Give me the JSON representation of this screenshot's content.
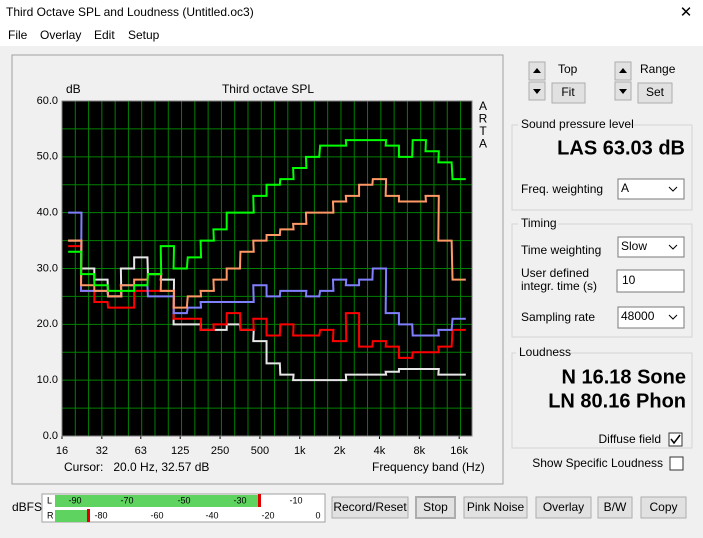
{
  "window": {
    "title": "Third Octave SPL and Loudness (Untitled.oc3)",
    "close": "✕"
  },
  "menu": [
    "File",
    "Overlay",
    "Edit",
    "Setup"
  ],
  "chart_data": {
    "type": "line",
    "title": "Third octave SPL",
    "y_label": "dB",
    "x_label": "Frequency band (Hz)",
    "side_label": [
      "A",
      "R",
      "T",
      "A"
    ],
    "cursor": "Cursor:   20.0 Hz, 32.57 dB",
    "log_x": true,
    "grid": true,
    "background": "#000000",
    "grid_color": "#008000",
    "x": [
      20,
      25,
      31.5,
      40,
      50,
      63,
      80,
      100,
      125,
      160,
      200,
      250,
      315,
      400,
      500,
      630,
      800,
      1000,
      1250,
      1600,
      2000,
      2500,
      3150,
      4000,
      5000,
      6300,
      8000,
      10000,
      12500,
      16000
    ],
    "xlim": [
      16,
      20000
    ],
    "xticks": [
      16,
      32,
      63,
      125,
      250,
      500,
      {
        "value": 1000,
        "label": "1k"
      },
      {
        "value": 2000,
        "label": "2k"
      },
      {
        "value": 4000,
        "label": "4k"
      },
      {
        "value": 8000,
        "label": "8k"
      },
      {
        "value": 16000,
        "label": "16k"
      }
    ],
    "ylim": [
      0,
      60
    ],
    "yticks": [
      {
        "value": 0,
        "label": "0.0"
      },
      {
        "value": 10,
        "label": "10.0"
      },
      {
        "value": 20,
        "label": "20.0"
      },
      {
        "value": 30,
        "label": "30.0"
      },
      {
        "value": 40,
        "label": "40.0"
      },
      {
        "value": 50,
        "label": "50.0"
      },
      {
        "value": 60,
        "label": "60.0"
      }
    ],
    "yminorticks": [
      5,
      15,
      25,
      35,
      45,
      55
    ],
    "series": [
      {
        "color": "#e6e6e6",
        "values": [
          35,
          30,
          28,
          25,
          30,
          32,
          29,
          28,
          20,
          20,
          19,
          19,
          20,
          19,
          17,
          13,
          11,
          10,
          10,
          10,
          10,
          11,
          11,
          11,
          11.5,
          12,
          12,
          12,
          11,
          11
        ]
      },
      {
        "color": "#ff0000",
        "values": [
          34,
          26,
          24,
          23,
          23,
          26,
          26,
          26,
          21,
          21,
          19,
          20,
          22,
          19,
          21,
          18,
          20,
          18,
          18,
          19,
          17,
          22,
          16,
          17,
          16,
          14,
          15,
          15,
          16,
          19
        ]
      },
      {
        "color": "#8080ff",
        "values": [
          40,
          26,
          26,
          25,
          27,
          27,
          25,
          25,
          22,
          23,
          24,
          24,
          24,
          24,
          27,
          25,
          26,
          26,
          25,
          26,
          28,
          27,
          28,
          30,
          22,
          20,
          18,
          18,
          19,
          21
        ]
      },
      {
        "color": "#ff9966",
        "values": [
          35,
          27,
          26,
          25,
          27,
          28,
          29,
          26,
          23,
          25,
          26,
          28,
          30,
          33,
          35,
          36,
          37,
          38,
          40,
          40,
          42,
          43,
          45,
          46,
          43,
          42,
          42,
          43,
          35,
          28
        ]
      },
      {
        "color": "#00ff00",
        "values": [
          33,
          29,
          27,
          26,
          26,
          27,
          29,
          34,
          30,
          32,
          35,
          37,
          40,
          40,
          43,
          45,
          46,
          48,
          50,
          52,
          52,
          53,
          53,
          53,
          52,
          50,
          53,
          51,
          49,
          46
        ]
      }
    ]
  },
  "controls": {
    "top": "Top",
    "fit": "Fit",
    "range": "Range",
    "set": "Set",
    "spl_group": "Sound pressure level",
    "las": "LAS 63.03 dB",
    "freq_weighting": "Freq. weighting",
    "freq_weighting_value": "A",
    "timing_group": "Timing",
    "time_weighting": "Time weighting",
    "time_weighting_value": "Slow",
    "integr_time": [
      "User defined",
      "integr. time (s)"
    ],
    "integr_time_value": "10",
    "sampling_rate": "Sampling rate",
    "sampling_rate_value": "48000",
    "loudness_group": "Loudness",
    "n": "N 16.18 Sone",
    "ln": "LN 80.16 Phon",
    "diffuse_field": "Diffuse field",
    "show_specific": "Show Specific Loudness"
  },
  "meter": {
    "label": "dBFS",
    "l": "L",
    "r": "R",
    "l_scale": [
      "-90",
      "-70",
      "-50",
      "-30",
      "-10"
    ],
    "r_scale": [
      "-80",
      "-60",
      "-40",
      "-20",
      "0"
    ]
  },
  "buttons": [
    "Record/Reset",
    "Stop",
    "Pink Noise",
    "Overlay",
    "B/W",
    "Copy"
  ]
}
